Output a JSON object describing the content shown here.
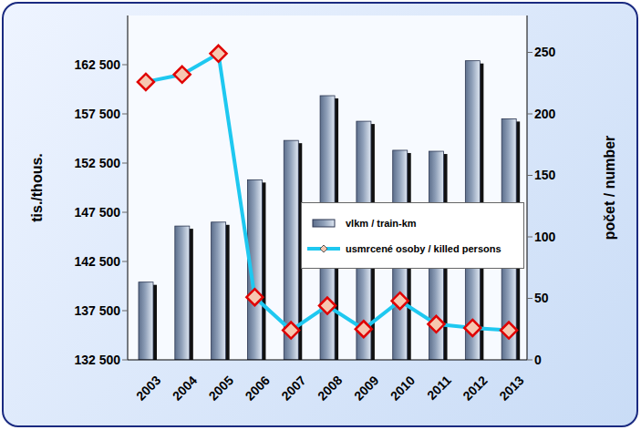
{
  "chart_data": {
    "type": "bar",
    "categories": [
      "2003",
      "2004",
      "2005",
      "2006",
      "2007",
      "2008",
      "2009",
      "2010",
      "2011",
      "2012",
      "2013"
    ],
    "series": [
      {
        "name": "vlkm / train-km",
        "type": "bar",
        "color": "#8e9fb8",
        "values": [
          140400,
          146100,
          146500,
          150800,
          154800,
          159350,
          156750,
          153800,
          153700,
          162900,
          157000
        ]
      },
      {
        "name": "usmrcené osoby / killed persons",
        "type": "line",
        "axis": "y2",
        "color": "#1ec8f0",
        "marker": "diamond",
        "values": [
          226,
          232,
          249,
          51,
          24,
          44,
          25,
          48,
          29,
          26,
          24
        ]
      }
    ],
    "y_label": "tis./thous.",
    "y2_label": "počet / number",
    "ylim": [
      132500,
      167500
    ],
    "yticks": [
      {
        "value": 132500,
        "label": "132 500"
      },
      {
        "value": 137500,
        "label": "137 500"
      },
      {
        "value": 142500,
        "label": "142 500"
      },
      {
        "value": 147500,
        "label": "147 500"
      },
      {
        "value": 152500,
        "label": "152 500"
      },
      {
        "value": 157500,
        "label": "157 500"
      },
      {
        "value": 162500,
        "label": "162 500"
      }
    ],
    "y2lim": [
      0,
      280
    ],
    "y2ticks": [
      0,
      50,
      100,
      150,
      200,
      250
    ],
    "grid": false,
    "legend": "right"
  }
}
